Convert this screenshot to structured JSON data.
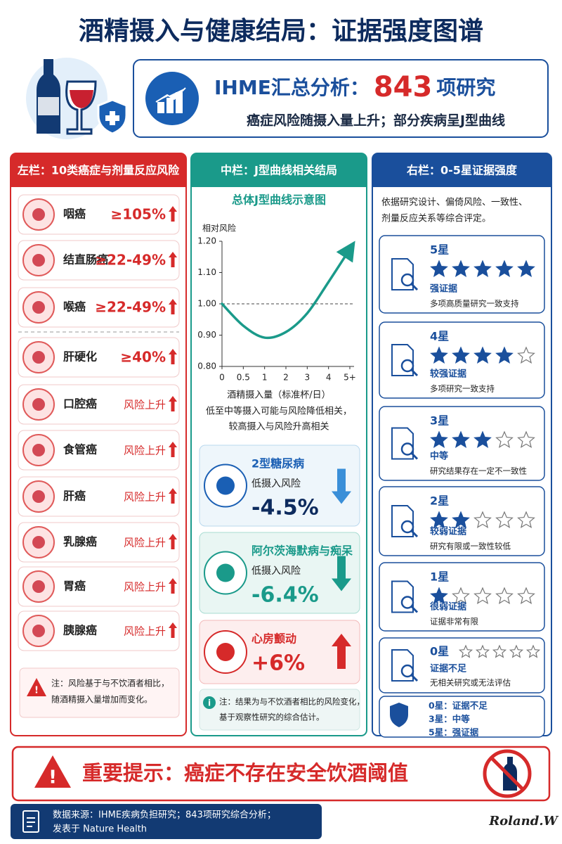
{
  "header": {
    "title": "酒精摄入与健康结局：证据强度图谱"
  },
  "summary": {
    "title_prefix": "IHME汇总分析：",
    "count": "843",
    "title_suffix": "项研究",
    "subtitle": "癌症风险随摄入量上升；部分疾病呈J型曲线"
  },
  "left": {
    "title": "左栏：10类癌症与剂量反应风险",
    "items": [
      {
        "name": "咽癌",
        "risk": "≥105%"
      },
      {
        "name": "结直肠癌",
        "risk": "≥22-49%"
      },
      {
        "name": "喉癌",
        "risk": "≥22-49%"
      },
      {
        "name": "肝硬化",
        "risk": "≥40%"
      },
      {
        "name": "口腔癌",
        "risk": "风险上升"
      },
      {
        "name": "食管癌",
        "risk": "风险上升"
      },
      {
        "name": "肝癌",
        "risk": "风险上升"
      },
      {
        "name": "乳腺癌",
        "risk": "风险上升"
      },
      {
        "name": "胃癌",
        "risk": "风险上升"
      },
      {
        "name": "胰腺癌",
        "risk": "风险上升"
      }
    ],
    "note": [
      "注：风险基于与不饮酒者相比，",
      "随酒精摄入量增加而变化。"
    ]
  },
  "middle": {
    "title": "中栏：J型曲线相关结局",
    "chart_note": [
      "低至中等摄入可能与风险降低相关，",
      "较高摄入与风险升高相关"
    ],
    "outcomes": [
      {
        "name": "2型糖尿病",
        "condition": "低摄入风险",
        "change": "-4.5%"
      },
      {
        "name": "阿尔茨海默病与痴呆",
        "condition": "低摄入风险",
        "change": "-6.4%"
      },
      {
        "name": "心房颤动",
        "change": "+6%"
      }
    ],
    "note": [
      "注：结果为与不饮酒者相比的风险变化，",
      "基于观察性研究的综合估计。"
    ]
  },
  "chart_data": {
    "type": "line",
    "title": "总体J型曲线示意图",
    "ylabel": "相对风险",
    "xlabel": "酒精摄入量（标准杯/日）",
    "categories": [
      "0",
      "0.5",
      "1",
      "2",
      "3",
      "4",
      "5+"
    ],
    "values": [
      1.0,
      0.93,
      0.892,
      0.91,
      0.97,
      1.07,
      1.175
    ],
    "color": "#1a9a8a",
    "ylim": [
      0.8,
      1.2
    ],
    "yticks": [
      {
        "value": 0.8,
        "label": "0.80"
      },
      {
        "value": 0.9,
        "label": "0.90"
      },
      {
        "value": 1.0,
        "label": "1.00"
      },
      {
        "value": 1.1,
        "label": "1.10"
      },
      {
        "value": 1.2,
        "label": "1.20"
      }
    ],
    "reference_line": 1.0
  },
  "right": {
    "title": "右栏：0-5星证据强度",
    "intro": [
      "依据研究设计、偏倚风险、一致性、",
      "剂量反应关系等综合评定。"
    ],
    "levels": [
      {
        "label": "5星",
        "stars": 5,
        "grade": "强证据",
        "desc": "多项高质量研究一致支持"
      },
      {
        "label": "4星",
        "stars": 4,
        "grade": "较强证据",
        "desc": "多项研究一致支持"
      },
      {
        "label": "3星",
        "stars": 3,
        "grade": "中等",
        "desc": "研究结果存在一定不一致性"
      },
      {
        "label": "2星",
        "stars": 2,
        "grade": "较弱证据",
        "desc": "研究有限或一致性较低"
      },
      {
        "label": "1星",
        "stars": 1,
        "grade": "很弱证据",
        "desc": "证据非常有限"
      },
      {
        "label": "0星",
        "stars": 0,
        "grade": "证据不足",
        "desc": "无相关研究或无法评估"
      }
    ],
    "legend": [
      "0星：证据不足",
      "3星：中等",
      "5星：强证据"
    ]
  },
  "warning": {
    "text": "重要提示：癌症不存在安全饮酒阈值"
  },
  "source": {
    "lines": [
      "数据来源：IHME疾病负担研究；843项研究综合分析；",
      "发表于 Nature Health"
    ]
  },
  "signature": "Roland.W"
}
